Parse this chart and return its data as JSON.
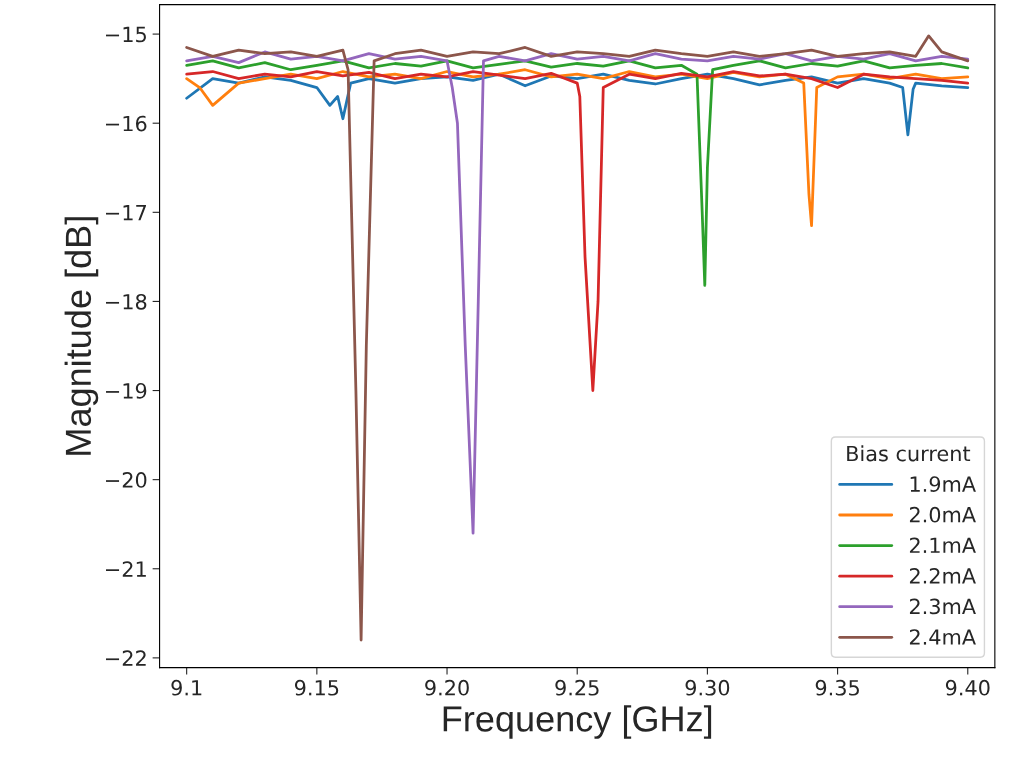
{
  "chart_data": {
    "type": "line",
    "xlabel": "Frequency [GHz]",
    "ylabel": "Magnitude [dB]",
    "legend_title": "Bias current",
    "legend": "bottom right",
    "xlim": [
      9.0896,
      9.4104
    ],
    "ylim": [
      -22.11,
      -14.67
    ],
    "xticks": [
      9.1,
      9.15,
      {
        "value": 9.2,
        "label": "9.20"
      },
      9.25,
      {
        "value": 9.3,
        "label": "9.30"
      },
      9.35,
      {
        "value": 9.4,
        "label": "9.40"
      }
    ],
    "yticks": [
      -22,
      -21,
      -20,
      -19,
      -18,
      -17,
      -16,
      -15
    ],
    "series": [
      {
        "name": "1.9mA",
        "color": "#1f77b4",
        "x": [
          9.1,
          9.11,
          9.12,
          9.13,
          9.14,
          9.15,
          9.155,
          9.158,
          9.16,
          9.163,
          9.17,
          9.18,
          9.19,
          9.2,
          9.21,
          9.22,
          9.23,
          9.24,
          9.25,
          9.26,
          9.27,
          9.28,
          9.29,
          9.3,
          9.31,
          9.32,
          9.33,
          9.34,
          9.35,
          9.36,
          9.37,
          9.375,
          9.377,
          9.379,
          9.38,
          9.39,
          9.4
        ],
        "values": [
          -15.72,
          -15.5,
          -15.55,
          -15.48,
          -15.52,
          -15.6,
          -15.8,
          -15.7,
          -15.95,
          -15.55,
          -15.5,
          -15.55,
          -15.5,
          -15.48,
          -15.52,
          -15.45,
          -15.58,
          -15.47,
          -15.5,
          -15.45,
          -15.52,
          -15.56,
          -15.5,
          -15.45,
          -15.5,
          -15.57,
          -15.52,
          -15.48,
          -15.55,
          -15.5,
          -15.55,
          -15.6,
          -16.13,
          -15.62,
          -15.55,
          -15.58,
          -15.6
        ]
      },
      {
        "name": "2.0mA",
        "color": "#ff7f0e",
        "x": [
          9.1,
          9.105,
          9.11,
          9.12,
          9.13,
          9.14,
          9.15,
          9.16,
          9.17,
          9.18,
          9.19,
          9.2,
          9.21,
          9.22,
          9.23,
          9.24,
          9.25,
          9.26,
          9.27,
          9.28,
          9.29,
          9.3,
          9.31,
          9.32,
          9.33,
          9.337,
          9.339,
          9.34,
          9.342,
          9.35,
          9.36,
          9.37,
          9.38,
          9.39,
          9.4
        ],
        "values": [
          -15.5,
          -15.6,
          -15.8,
          -15.55,
          -15.5,
          -15.45,
          -15.5,
          -15.42,
          -15.48,
          -15.45,
          -15.5,
          -15.42,
          -15.48,
          -15.45,
          -15.4,
          -15.48,
          -15.45,
          -15.5,
          -15.42,
          -15.48,
          -15.45,
          -15.5,
          -15.43,
          -15.48,
          -15.45,
          -15.55,
          -16.8,
          -17.15,
          -15.6,
          -15.48,
          -15.45,
          -15.5,
          -15.45,
          -15.5,
          -15.48
        ]
      },
      {
        "name": "2.1mA",
        "color": "#2ca02c",
        "x": [
          9.1,
          9.11,
          9.12,
          9.13,
          9.14,
          9.15,
          9.16,
          9.17,
          9.18,
          9.19,
          9.2,
          9.21,
          9.22,
          9.23,
          9.24,
          9.25,
          9.26,
          9.27,
          9.28,
          9.29,
          9.296,
          9.298,
          9.299,
          9.3,
          9.302,
          9.31,
          9.32,
          9.33,
          9.34,
          9.35,
          9.36,
          9.37,
          9.38,
          9.39,
          9.4
        ],
        "values": [
          -15.35,
          -15.3,
          -15.38,
          -15.32,
          -15.4,
          -15.35,
          -15.3,
          -15.38,
          -15.33,
          -15.36,
          -15.3,
          -15.38,
          -15.34,
          -15.3,
          -15.37,
          -15.33,
          -15.36,
          -15.3,
          -15.38,
          -15.35,
          -15.45,
          -17.0,
          -17.82,
          -16.5,
          -15.4,
          -15.35,
          -15.3,
          -15.38,
          -15.33,
          -15.36,
          -15.3,
          -15.38,
          -15.35,
          -15.33,
          -15.38
        ]
      },
      {
        "name": "2.2mA",
        "color": "#d62728",
        "x": [
          9.1,
          9.11,
          9.12,
          9.13,
          9.14,
          9.15,
          9.16,
          9.17,
          9.18,
          9.19,
          9.2,
          9.21,
          9.22,
          9.23,
          9.24,
          9.25,
          9.251,
          9.253,
          9.256,
          9.258,
          9.26,
          9.27,
          9.28,
          9.29,
          9.3,
          9.31,
          9.32,
          9.33,
          9.34,
          9.35,
          9.36,
          9.37,
          9.38,
          9.39,
          9.4
        ],
        "values": [
          -15.45,
          -15.42,
          -15.5,
          -15.45,
          -15.48,
          -15.42,
          -15.47,
          -15.43,
          -15.5,
          -15.45,
          -15.48,
          -15.42,
          -15.46,
          -15.5,
          -15.44,
          -15.55,
          -15.7,
          -17.5,
          -19.0,
          -18.0,
          -15.6,
          -15.45,
          -15.5,
          -15.44,
          -15.48,
          -15.42,
          -15.47,
          -15.45,
          -15.5,
          -15.6,
          -15.45,
          -15.48,
          -15.5,
          -15.52,
          -15.55
        ]
      },
      {
        "name": "2.3mA",
        "color": "#9467bd",
        "x": [
          9.1,
          9.11,
          9.12,
          9.13,
          9.14,
          9.15,
          9.16,
          9.17,
          9.18,
          9.19,
          9.2,
          9.202,
          9.204,
          9.207,
          9.21,
          9.212,
          9.214,
          9.22,
          9.23,
          9.24,
          9.25,
          9.26,
          9.27,
          9.28,
          9.29,
          9.3,
          9.31,
          9.32,
          9.33,
          9.34,
          9.35,
          9.36,
          9.37,
          9.38,
          9.39,
          9.4
        ],
        "values": [
          -15.3,
          -15.25,
          -15.32,
          -15.2,
          -15.28,
          -15.25,
          -15.3,
          -15.22,
          -15.28,
          -15.25,
          -15.3,
          -15.6,
          -16.0,
          -18.5,
          -20.6,
          -18.0,
          -15.3,
          -15.25,
          -15.3,
          -15.22,
          -15.28,
          -15.25,
          -15.3,
          -15.22,
          -15.28,
          -15.3,
          -15.25,
          -15.28,
          -15.22,
          -15.3,
          -15.25,
          -15.28,
          -15.22,
          -15.3,
          -15.25,
          -15.28
        ]
      },
      {
        "name": "2.4mA",
        "color": "#8c564b",
        "x": [
          9.1,
          9.11,
          9.12,
          9.13,
          9.14,
          9.15,
          9.16,
          9.162,
          9.165,
          9.167,
          9.169,
          9.172,
          9.18,
          9.19,
          9.2,
          9.21,
          9.22,
          9.23,
          9.24,
          9.25,
          9.26,
          9.27,
          9.28,
          9.29,
          9.3,
          9.31,
          9.32,
          9.33,
          9.34,
          9.35,
          9.36,
          9.37,
          9.38,
          9.385,
          9.39,
          9.4
        ],
        "values": [
          -15.15,
          -15.25,
          -15.18,
          -15.22,
          -15.2,
          -15.25,
          -15.18,
          -15.4,
          -19.0,
          -21.8,
          -18.5,
          -15.3,
          -15.22,
          -15.18,
          -15.25,
          -15.2,
          -15.22,
          -15.15,
          -15.25,
          -15.2,
          -15.22,
          -15.25,
          -15.18,
          -15.22,
          -15.25,
          -15.2,
          -15.25,
          -15.22,
          -15.18,
          -15.25,
          -15.22,
          -15.2,
          -15.25,
          -15.02,
          -15.2,
          -15.3
        ]
      }
    ]
  }
}
